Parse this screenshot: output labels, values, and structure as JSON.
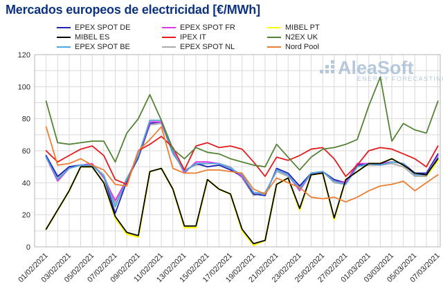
{
  "title": {
    "text": "Mercados europeos de electricidad [€/MWh]",
    "color": "#0d3380"
  },
  "watermark": {
    "name": "AleaSoft",
    "subtitle": "ENERGY FORECASTING",
    "color": "#a9bfd6"
  },
  "chart_data": {
    "type": "line",
    "title": "Mercados europeos de electricidad [€/MWh]",
    "xlabel": "",
    "ylabel": "",
    "ylim": [
      0,
      120
    ],
    "y_ticks": [
      0,
      20,
      40,
      60,
      80,
      100,
      120
    ],
    "y_minor_grid_step": 10,
    "grid": true,
    "legend_position": "top",
    "x_is_daily_dates": true,
    "x_first_date": "01/02/2021",
    "x_last_date": "07/03/2021",
    "x_tick_labels": [
      "01/02/2021",
      "03/02/2021",
      "05/02/2021",
      "07/02/2021",
      "09/02/2021",
      "11/02/2021",
      "13/02/2021",
      "15/02/2021",
      "17/02/2021",
      "19/02/2021",
      "21/02/2021",
      "23/02/2021",
      "25/02/2021",
      "27/02/2021",
      "01/03/2021",
      "03/03/2021",
      "05/03/2021",
      "07/03/2021"
    ],
    "series": [
      {
        "name": "EPEX SPOT DE",
        "color": "#1f22b4",
        "values": [
          57,
          44,
          50,
          51,
          51,
          44,
          21,
          41,
          56,
          77,
          78,
          59,
          47,
          52,
          50,
          51,
          48,
          44,
          33,
          32,
          49,
          46,
          38,
          46,
          47,
          42,
          40,
          51,
          52,
          52,
          53,
          52,
          46,
          46,
          58
        ]
      },
      {
        "name": "MIBEL ES",
        "color": "#000000",
        "values": [
          11,
          23,
          35,
          50,
          50,
          40,
          19,
          9,
          7,
          47,
          49,
          36,
          13,
          13,
          42,
          36,
          33,
          11,
          2,
          4,
          39,
          43,
          24,
          45,
          46,
          18,
          42,
          47,
          52,
          52,
          55,
          51,
          46,
          45,
          55
        ]
      },
      {
        "name": "EPEX SPOT BE",
        "color": "#4aa8dc",
        "values": [
          56,
          42,
          49,
          51,
          51,
          44,
          25,
          42,
          57,
          79,
          79,
          59,
          47,
          52,
          52,
          52,
          49,
          45,
          34,
          33,
          48,
          45,
          36,
          46,
          47,
          41,
          39,
          50,
          52,
          51,
          53,
          52,
          45,
          45,
          56
        ]
      },
      {
        "name": "EPEX SPOT FR",
        "color": "#e632e6",
        "values": [
          56,
          41,
          49,
          51,
          52,
          43,
          29,
          42,
          57,
          78,
          78,
          60,
          46,
          53,
          53,
          52,
          49,
          44,
          34,
          33,
          48,
          45,
          35,
          46,
          47,
          41,
          40,
          52,
          52,
          52,
          53,
          52,
          45,
          45,
          57
        ]
      },
      {
        "name": "IPEX IT",
        "color": "#e41a1c",
        "values": [
          60,
          53,
          57,
          61,
          63,
          57,
          42,
          39,
          60,
          64,
          69,
          62,
          48,
          63,
          65,
          62,
          63,
          61,
          53,
          44,
          56,
          54,
          57,
          61,
          62,
          55,
          44,
          51,
          60,
          62,
          61,
          58,
          55,
          50,
          63
        ]
      },
      {
        "name": "EPEX SPOT NL",
        "color": "#a9a9a9",
        "values": [
          56,
          43,
          50,
          51,
          51,
          45,
          27,
          43,
          55,
          76,
          77,
          58,
          48,
          51,
          52,
          52,
          50,
          43,
          32,
          34,
          47,
          44,
          37,
          45,
          47,
          40,
          39,
          50,
          51,
          51,
          52,
          50,
          44,
          44,
          57
        ]
      },
      {
        "name": "MIBEL PT",
        "color": "#ffff00",
        "values": [
          11,
          23,
          35,
          50,
          50,
          40,
          18,
          8,
          6,
          47,
          49,
          36,
          12,
          12,
          42,
          36,
          33,
          10,
          1,
          4,
          39,
          43,
          23,
          45,
          46,
          17,
          42,
          47,
          52,
          52,
          55,
          51,
          46,
          44,
          54
        ]
      },
      {
        "name": "N2EX UK",
        "color": "#548235",
        "values": [
          91,
          65,
          64,
          65,
          66,
          66,
          53,
          71,
          80,
          95,
          79,
          61,
          55,
          62,
          59,
          58,
          55,
          53,
          51,
          50,
          64,
          56,
          48,
          56,
          61,
          62,
          64,
          67,
          88,
          106,
          66,
          77,
          73,
          71,
          91
        ]
      },
      {
        "name": "Nord Pool",
        "color": "#ed7d31",
        "values": [
          75,
          51,
          52,
          55,
          51,
          48,
          39,
          38,
          60,
          67,
          75,
          49,
          46,
          46,
          48,
          48,
          47,
          46,
          36,
          33,
          43,
          40,
          37,
          31,
          30,
          31,
          28,
          31,
          35,
          38,
          39,
          41,
          35,
          40,
          45
        ]
      }
    ]
  }
}
